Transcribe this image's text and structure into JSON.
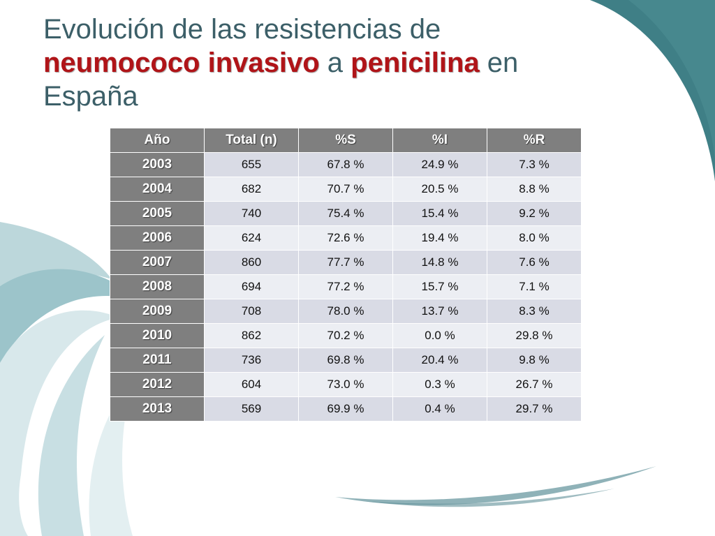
{
  "title": {
    "part1": "Evolución de las resistencias de ",
    "highlight1": "neumococo invasivo",
    "part2": " a ",
    "highlight2": "penicilina",
    "part3": " en España"
  },
  "colors": {
    "title_text": "#3c5f68",
    "highlight": "#b01418",
    "header_bg": "#7f7f7f",
    "row_odd": "#d9dbe5",
    "row_even": "#eceef3",
    "teal_accent": "#3f7f86"
  },
  "table": {
    "headers": [
      "Año",
      "Total (n)",
      "%S",
      "%I",
      "%R"
    ],
    "rows": [
      [
        "2003",
        "655",
        "67.8 %",
        "24.9 %",
        "7.3 %"
      ],
      [
        "2004",
        "682",
        "70.7 %",
        "20.5 %",
        "8.8 %"
      ],
      [
        "2005",
        "740",
        "75.4 %",
        "15.4 %",
        "9.2 %"
      ],
      [
        "2006",
        "624",
        "72.6 %",
        "19.4 %",
        "8.0 %"
      ],
      [
        "2007",
        "860",
        "77.7 %",
        "14.8 %",
        "7.6 %"
      ],
      [
        "2008",
        "694",
        "77.2 %",
        "15.7 %",
        "7.1 %"
      ],
      [
        "2009",
        "708",
        "78.0 %",
        "13.7 %",
        "8.3 %"
      ],
      [
        "2010",
        "862",
        "70.2 %",
        "0.0 %",
        "29.8 %"
      ],
      [
        "2011",
        "736",
        "69.8 %",
        "20.4 %",
        "9.8 %"
      ],
      [
        "2012",
        "604",
        "73.0 %",
        "0.3 %",
        "26.7 %"
      ],
      [
        "2013",
        "569",
        "69.9 %",
        "0.4 %",
        "29.7 %"
      ]
    ]
  }
}
